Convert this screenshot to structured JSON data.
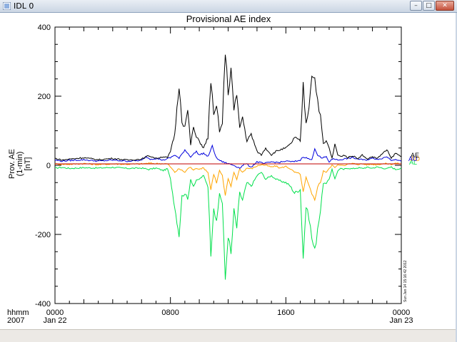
{
  "window": {
    "title": "IDL 0",
    "buttons": {
      "minimize": "–",
      "maximize": "□",
      "close": "✕"
    }
  },
  "chart_data": {
    "type": "line",
    "title": "Provisional AE index",
    "ylabel": [
      "Prov. AE",
      "(1-min)",
      "[nT]"
    ],
    "ylim": [
      -400,
      400
    ],
    "yticks": [
      -400,
      -200,
      0,
      200,
      400
    ],
    "xlim_hours": [
      0,
      24
    ],
    "xticks": [
      {
        "hour": 0,
        "label": "0000",
        "sublabel": "Jan 22"
      },
      {
        "hour": 8,
        "label": "0800",
        "sublabel": ""
      },
      {
        "hour": 16,
        "label": "1600",
        "sublabel": ""
      },
      {
        "hour": 24,
        "label": "0000",
        "sublabel": "Jan 23"
      }
    ],
    "xaxis_left_labels": [
      "hhmm",
      "2007"
    ],
    "grid": false,
    "credit": "Sun Jan 14 15:16:42 2012",
    "series": [
      {
        "name": "AE",
        "color": "#000000",
        "x": [
          0,
          0.5,
          1,
          2,
          3,
          4,
          5,
          6,
          6.5,
          7,
          7.5,
          7.8,
          8,
          8.3,
          8.6,
          8.8,
          9,
          9.2,
          9.4,
          9.6,
          9.8,
          10,
          10.3,
          10.6,
          10.8,
          11,
          11.2,
          11.4,
          11.6,
          11.8,
          12,
          12.2,
          12.4,
          12.6,
          12.8,
          13,
          13.3,
          13.6,
          14,
          14.3,
          14.6,
          15,
          15.3,
          15.6,
          16,
          16.3,
          16.6,
          17,
          17.2,
          17.4,
          17.6,
          17.8,
          18,
          18.2,
          18.4,
          18.6,
          18.8,
          19,
          19.2,
          19.4,
          19.6,
          19.8,
          20,
          20.3,
          20.6,
          21,
          21.3,
          21.6,
          22,
          22.3,
          22.6,
          23,
          23.3,
          23.6,
          24
        ],
        "y": [
          20,
          15,
          18,
          22,
          16,
          20,
          15,
          18,
          28,
          20,
          25,
          22,
          40,
          90,
          235,
          130,
          110,
          160,
          60,
          110,
          80,
          70,
          50,
          80,
          250,
          140,
          170,
          100,
          120,
          330,
          210,
          280,
          160,
          200,
          110,
          140,
          70,
          90,
          40,
          30,
          50,
          30,
          40,
          45,
          50,
          60,
          80,
          70,
          230,
          120,
          170,
          270,
          250,
          190,
          140,
          60,
          70,
          50,
          20,
          60,
          30,
          25,
          30,
          22,
          28,
          20,
          30,
          18,
          25,
          20,
          30,
          45,
          20,
          35,
          25
        ]
      },
      {
        "name": "AL",
        "color": "#00e04b",
        "x": [
          0,
          0.5,
          1,
          2,
          3,
          4,
          5,
          6,
          6.5,
          7,
          7.5,
          7.8,
          8,
          8.3,
          8.6,
          8.8,
          9,
          9.2,
          9.4,
          9.6,
          9.8,
          10,
          10.3,
          10.6,
          10.8,
          11,
          11.2,
          11.4,
          11.6,
          11.8,
          12,
          12.2,
          12.4,
          12.6,
          12.8,
          13,
          13.3,
          13.6,
          14,
          14.3,
          14.6,
          15,
          15.3,
          15.6,
          16,
          16.3,
          16.6,
          17,
          17.2,
          17.4,
          17.6,
          17.8,
          18,
          18.2,
          18.4,
          18.6,
          18.8,
          19,
          19.2,
          19.4,
          19.6,
          19.8,
          20,
          20.3,
          20.6,
          21,
          21.3,
          21.6,
          22,
          22.3,
          22.6,
          23,
          23.3,
          23.6,
          24
        ],
        "y": [
          -8,
          -6,
          -9,
          -7,
          -8,
          -6,
          -9,
          -8,
          -12,
          -8,
          -15,
          -10,
          -40,
          -120,
          -200,
          -90,
          -80,
          -100,
          -40,
          -60,
          -45,
          -40,
          -30,
          -60,
          -250,
          -120,
          -170,
          -80,
          -110,
          -330,
          -200,
          -260,
          -130,
          -180,
          -80,
          -100,
          -50,
          -60,
          -30,
          -20,
          -40,
          -30,
          -40,
          -45,
          -50,
          -60,
          -80,
          -70,
          -265,
          -120,
          -150,
          -210,
          -250,
          -180,
          -130,
          -50,
          -55,
          -40,
          -10,
          -40,
          -15,
          -10,
          -12,
          -8,
          -10,
          -7,
          -9,
          -6,
          -8,
          -5,
          -7,
          -10,
          -5,
          -12,
          -8
        ]
      },
      {
        "name": "AU",
        "color": "#0000dd",
        "x": [
          0,
          0.5,
          1,
          2,
          3,
          4,
          5,
          6,
          6.3,
          6.6,
          7,
          7.5,
          8,
          8.3,
          8.6,
          9,
          9.4,
          9.8,
          10,
          10.3,
          10.6,
          10.9,
          11.2,
          11.6,
          12,
          12.4,
          12.8,
          13.2,
          13.6,
          14,
          14.5,
          15,
          15.5,
          16,
          16.5,
          17,
          17.2,
          17.5,
          17.8,
          18,
          18.2,
          18.5,
          18.8,
          19,
          19.3,
          19.6,
          20,
          20.3,
          20.6,
          21,
          21.5,
          22,
          22.5,
          23,
          23.3,
          23.6,
          24
        ],
        "y": [
          15,
          12,
          14,
          16,
          12,
          15,
          12,
          14,
          25,
          18,
          20,
          15,
          22,
          30,
          20,
          45,
          25,
          40,
          30,
          35,
          25,
          55,
          20,
          10,
          5,
          0,
          -8,
          5,
          -5,
          10,
          5,
          10,
          8,
          12,
          10,
          15,
          25,
          20,
          15,
          50,
          30,
          20,
          25,
          10,
          20,
          15,
          18,
          20,
          22,
          18,
          15,
          20,
          18,
          25,
          15,
          18,
          12
        ]
      },
      {
        "name": "AO",
        "color": "#ffa500",
        "x": [
          0,
          0.5,
          1,
          2,
          3,
          4,
          5,
          6,
          6.5,
          7,
          7.5,
          7.8,
          8,
          8.3,
          8.6,
          8.8,
          9,
          9.2,
          9.4,
          9.6,
          9.8,
          10,
          10.3,
          10.6,
          10.8,
          11,
          11.2,
          11.4,
          11.6,
          11.8,
          12,
          12.2,
          12.4,
          12.6,
          12.8,
          13,
          13.3,
          13.6,
          14,
          14.3,
          14.6,
          15,
          15.3,
          15.6,
          16,
          16.3,
          16.6,
          17,
          17.2,
          17.4,
          17.6,
          17.8,
          18,
          18.2,
          18.4,
          18.6,
          18.8,
          19,
          19.2,
          19.4,
          19.6,
          19.8,
          20,
          20.3,
          20.6,
          21,
          21.3,
          21.6,
          22,
          22.3,
          22.6,
          23,
          23.3,
          23.6,
          24
        ],
        "y": [
          4,
          3,
          3,
          5,
          2,
          4,
          3,
          4,
          6,
          5,
          5,
          4,
          -5,
          -20,
          -10,
          -15,
          -20,
          -10,
          -5,
          -15,
          -8,
          -10,
          -8,
          -20,
          -70,
          -25,
          -50,
          -15,
          -30,
          -90,
          -40,
          -60,
          -20,
          -40,
          -10,
          -20,
          -8,
          -10,
          -2,
          2,
          0,
          -5,
          -2,
          -8,
          -3,
          -10,
          -20,
          -25,
          -80,
          -35,
          -60,
          -85,
          -100,
          -60,
          -50,
          -15,
          -20,
          -10,
          0,
          -5,
          0,
          2,
          0,
          3,
          5,
          3,
          4,
          2,
          3,
          2,
          4,
          5,
          3,
          6,
          4
        ]
      }
    ]
  }
}
